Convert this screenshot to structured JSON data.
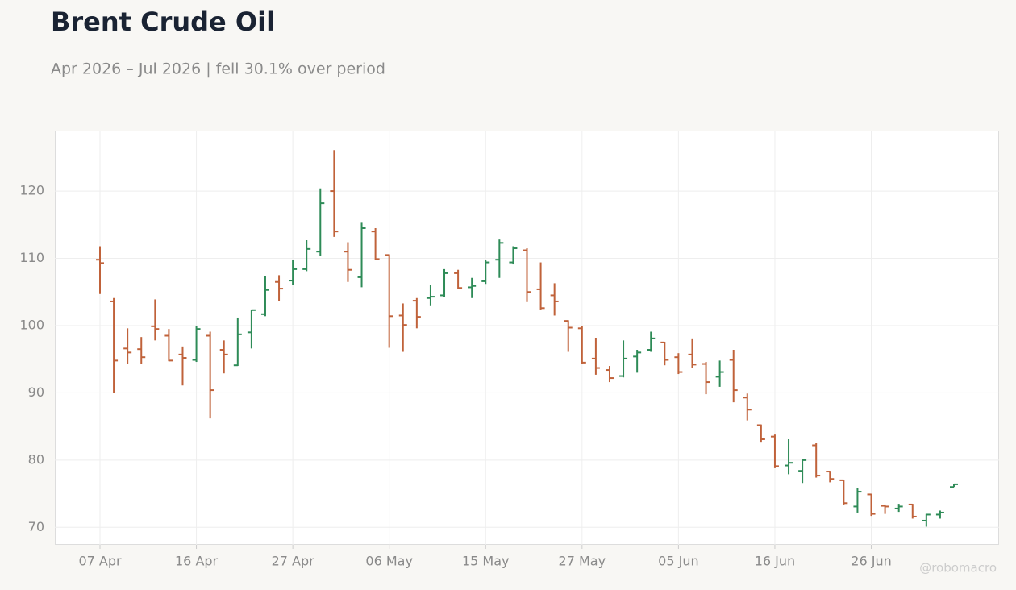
{
  "chart_data": {
    "type": "ohlc",
    "title": "Brent Crude Oil",
    "subtitle": "Apr 2026 – Jul 2026 | fell 30.1% over period",
    "watermark": "@robomacro",
    "categories": [
      "07 Apr",
      null,
      null,
      null,
      null,
      null,
      null,
      "16 Apr",
      null,
      null,
      null,
      null,
      null,
      null,
      "27 Apr",
      null,
      null,
      null,
      null,
      null,
      null,
      "06 May",
      null,
      null,
      null,
      null,
      null,
      null,
      "15 May",
      null,
      null,
      null,
      null,
      null,
      null,
      "27 May",
      null,
      null,
      null,
      null,
      null,
      null,
      "05 Jun",
      null,
      null,
      null,
      null,
      null,
      null,
      "16 Jun",
      null,
      null,
      null,
      null,
      null,
      null,
      "26 Jun",
      null,
      null,
      null,
      null,
      null,
      null
    ],
    "open": [
      109.8,
      103.6,
      96.6,
      96.5,
      99.9,
      98.5,
      95.7,
      94.9,
      98.5,
      96.4,
      94.1,
      99.0,
      101.7,
      106.5,
      106.7,
      108.4,
      111.0,
      120.0,
      111.0,
      107.2,
      114.0,
      110.5,
      101.5,
      103.7,
      104.1,
      104.5,
      107.8,
      105.7,
      106.6,
      109.8,
      109.4,
      111.2,
      105.4,
      104.5,
      100.7,
      99.6,
      95.1,
      93.4,
      92.5,
      95.4,
      96.4,
      97.5,
      95.3,
      95.7,
      94.3,
      92.4,
      94.9,
      89.3,
      85.2,
      83.5,
      79.2,
      78.4,
      82.2,
      78.3,
      77.0,
      73.1,
      74.9,
      73.2,
      72.8,
      73.4,
      71.0,
      71.9,
      76.0
    ],
    "high": [
      111.8,
      104.1,
      99.6,
      98.3,
      103.9,
      99.5,
      96.9,
      99.9,
      99.1,
      97.8,
      101.2,
      102.4,
      107.4,
      107.5,
      109.8,
      112.7,
      120.4,
      126.1,
      112.4,
      115.3,
      114.5,
      110.6,
      103.3,
      104.1,
      106.1,
      108.4,
      108.3,
      107.1,
      109.8,
      112.8,
      111.8,
      111.5,
      109.4,
      106.3,
      100.8,
      99.9,
      98.2,
      94.0,
      97.8,
      96.4,
      99.1,
      97.6,
      95.9,
      98.1,
      94.6,
      94.8,
      96.4,
      89.9,
      85.3,
      83.8,
      83.1,
      80.2,
      82.5,
      78.4,
      77.1,
      75.9,
      75.0,
      73.4,
      73.5,
      73.5,
      72.0,
      72.5,
      76.5
    ],
    "low": [
      104.7,
      90.0,
      94.3,
      94.3,
      97.8,
      94.7,
      91.1,
      94.6,
      86.2,
      92.9,
      94.0,
      96.6,
      101.4,
      103.6,
      106.0,
      108.1,
      110.3,
      113.2,
      106.5,
      105.7,
      109.8,
      96.7,
      96.1,
      99.6,
      102.9,
      104.3,
      105.4,
      104.1,
      106.2,
      107.1,
      109.1,
      103.5,
      102.4,
      101.5,
      96.1,
      94.3,
      92.7,
      91.6,
      92.3,
      93.0,
      96.1,
      94.1,
      92.8,
      93.7,
      89.8,
      90.9,
      88.6,
      85.9,
      82.6,
      78.8,
      77.9,
      76.6,
      77.4,
      76.7,
      73.4,
      72.2,
      71.7,
      72.0,
      72.3,
      71.3,
      70.1,
      71.3,
      76.0
    ],
    "close": [
      109.3,
      94.8,
      96.0,
      95.3,
      99.5,
      94.8,
      95.2,
      99.5,
      90.4,
      95.7,
      98.7,
      102.3,
      105.3,
      105.5,
      108.4,
      111.4,
      118.2,
      114.0,
      108.3,
      114.5,
      109.9,
      101.4,
      100.1,
      101.3,
      104.3,
      107.8,
      105.6,
      105.9,
      109.4,
      112.3,
      111.5,
      105.0,
      102.6,
      103.6,
      99.7,
      94.5,
      93.7,
      92.2,
      95.1,
      96.0,
      98.1,
      94.9,
      93.1,
      94.2,
      91.6,
      93.1,
      90.4,
      87.5,
      83.1,
      79.1,
      79.6,
      80.0,
      77.7,
      77.2,
      73.6,
      75.3,
      72.0,
      73.1,
      73.1,
      71.6,
      71.9,
      72.2,
      76.4
    ],
    "up_color": "#2e8b57",
    "down_color": "#c0623a",
    "ylim": [
      67.4,
      129.0
    ],
    "yticks": [
      70,
      80,
      90,
      100,
      110,
      120
    ],
    "grid": true
  }
}
